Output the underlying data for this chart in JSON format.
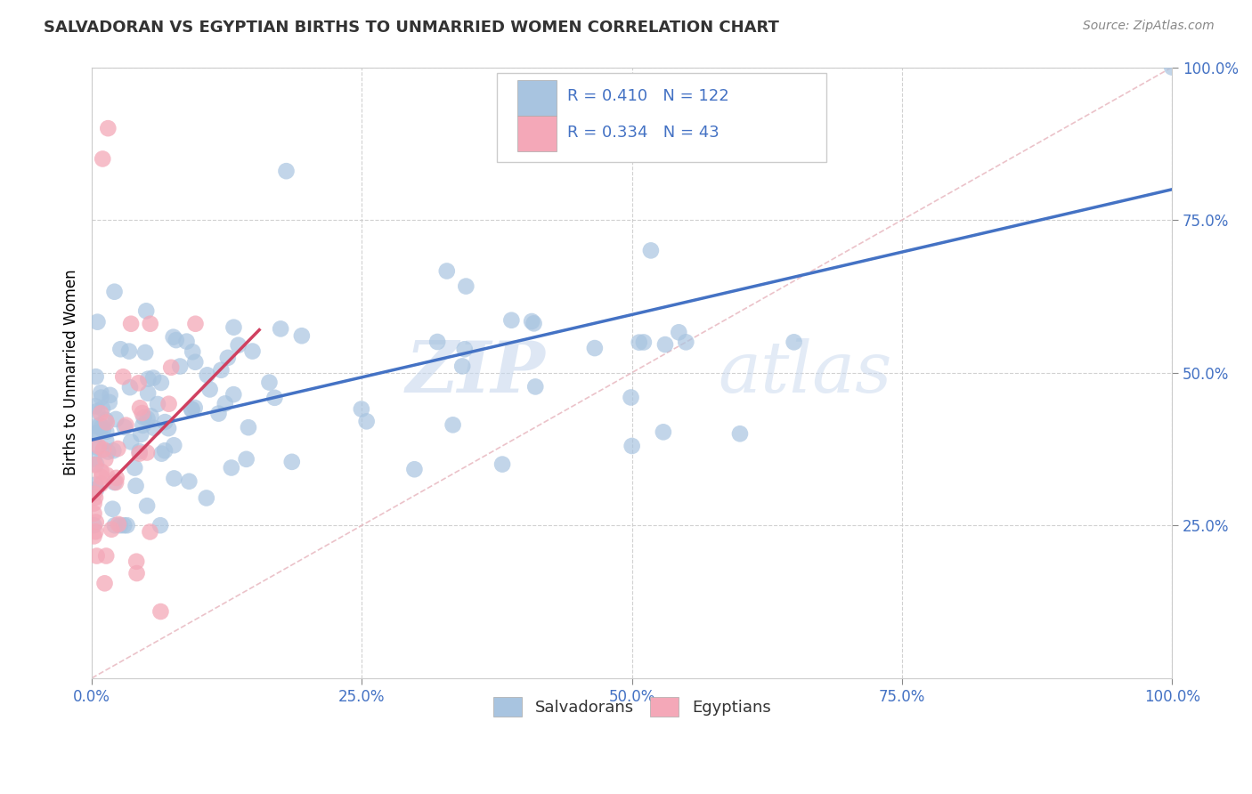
{
  "title": "SALVADORAN VS EGYPTIAN BIRTHS TO UNMARRIED WOMEN CORRELATION CHART",
  "source": "Source: ZipAtlas.com",
  "ylabel": "Births to Unmarried Women",
  "xlim": [
    0,
    1.0
  ],
  "ylim": [
    0,
    1.0
  ],
  "xticks": [
    0.0,
    0.25,
    0.5,
    0.75,
    1.0
  ],
  "yticks": [
    0.25,
    0.5,
    0.75,
    1.0
  ],
  "xticklabels": [
    "0.0%",
    "25.0%",
    "50.0%",
    "75.0%",
    "100.0%"
  ],
  "yticklabels_right": [
    "25.0%",
    "50.0%",
    "75.0%",
    "100.0%"
  ],
  "salvadoran_R": 0.41,
  "salvadoran_N": 122,
  "egyptian_R": 0.334,
  "egyptian_N": 43,
  "salvadoran_color": "#a8c4e0",
  "egyptian_color": "#f4a8b8",
  "salvadoran_line_color": "#4472c4",
  "egyptian_line_color": "#d04060",
  "diagonal_color": "#e8b8c0",
  "watermark_zip": "ZIP",
  "watermark_atlas": "atlas",
  "legend_salvadoran": "Salvadorans",
  "legend_egyptian": "Egyptians",
  "salv_line_x0": 0.0,
  "salv_line_y0": 0.39,
  "salv_line_x1": 1.0,
  "salv_line_y1": 0.8,
  "egypt_line_x0": 0.0,
  "egypt_line_y0": 0.29,
  "egypt_line_x1": 0.155,
  "egypt_line_y1": 0.57
}
